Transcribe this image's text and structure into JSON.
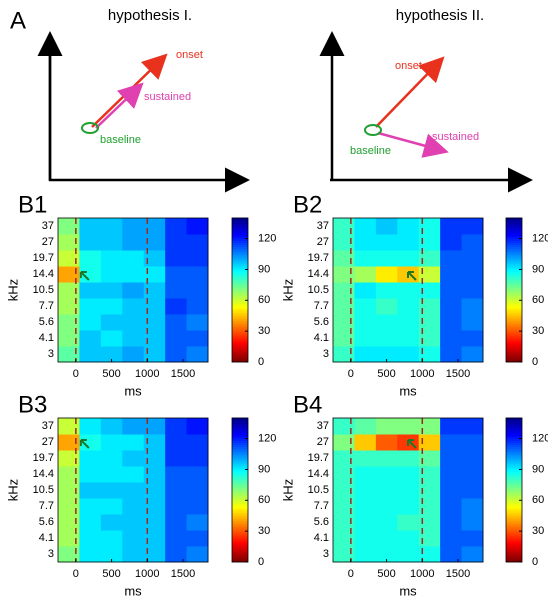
{
  "panel_a": {
    "label": "A",
    "left": {
      "title": "hypothesis I.",
      "onset": "onset",
      "sustained": "sustained",
      "baseline": "baseline"
    },
    "right": {
      "title": "hypothesis II.",
      "onset": "onset",
      "sustained": "sustained",
      "baseline": "baseline"
    }
  },
  "chart_data": [
    {
      "type": "heatmap",
      "label": "B1",
      "xlabel": "ms",
      "ylabel": "kHz",
      "categories": [
        "3",
        "4.1",
        "5.6",
        "7.7",
        "10.5",
        "14.4",
        "19.7",
        "27",
        "37"
      ],
      "x": [
        -100,
        200,
        500,
        800,
        1100,
        1400,
        1700
      ],
      "xlim": [
        -250,
        1850
      ],
      "xticks": [
        0,
        500,
        1000,
        1500
      ],
      "values": [
        [
          75,
          95,
          95,
          100,
          95,
          110,
          105
        ],
        [
          70,
          95,
          90,
          95,
          95,
          110,
          110
        ],
        [
          70,
          90,
          95,
          95,
          95,
          110,
          105
        ],
        [
          65,
          90,
          90,
          95,
          95,
          115,
          110
        ],
        [
          65,
          95,
          95,
          100,
          95,
          110,
          110
        ],
        [
          40,
          85,
          90,
          90,
          90,
          110,
          110
        ],
        [
          60,
          85,
          90,
          90,
          95,
          115,
          115
        ],
        [
          65,
          95,
          95,
          100,
          100,
          115,
          115
        ],
        [
          70,
          95,
          95,
          100,
          100,
          115,
          120
        ]
      ],
      "clim": [
        0,
        140
      ],
      "cticks": [
        0,
        30,
        60,
        90,
        120
      ],
      "vlines": [
        0,
        1000
      ],
      "peak": {
        "x": 70,
        "row": "14.4"
      }
    },
    {
      "type": "heatmap",
      "label": "B2",
      "xlabel": "ms",
      "ylabel": "kHz",
      "categories": [
        "3",
        "4.1",
        "5.6",
        "7.7",
        "10.5",
        "14.4",
        "19.7",
        "27",
        "37"
      ],
      "x": [
        -100,
        200,
        500,
        800,
        1100,
        1400,
        1700
      ],
      "xlim": [
        -250,
        1850
      ],
      "xticks": [
        0,
        500,
        1000,
        1500
      ],
      "values": [
        [
          80,
          90,
          90,
          90,
          85,
          110,
          105
        ],
        [
          75,
          85,
          85,
          85,
          80,
          110,
          110
        ],
        [
          75,
          85,
          85,
          85,
          80,
          110,
          105
        ],
        [
          75,
          85,
          80,
          85,
          80,
          110,
          105
        ],
        [
          75,
          90,
          85,
          85,
          85,
          110,
          110
        ],
        [
          70,
          65,
          50,
          45,
          60,
          110,
          110
        ],
        [
          75,
          85,
          85,
          85,
          80,
          110,
          110
        ],
        [
          80,
          90,
          90,
          90,
          85,
          115,
          110
        ],
        [
          80,
          90,
          95,
          90,
          85,
          115,
          115
        ]
      ],
      "clim": [
        0,
        140
      ],
      "cticks": [
        0,
        30,
        60,
        90,
        120
      ],
      "vlines": [
        0,
        1000
      ],
      "peak": {
        "x": 800,
        "row": "14.4"
      }
    },
    {
      "type": "heatmap",
      "label": "B3",
      "xlabel": "ms",
      "ylabel": "kHz",
      "categories": [
        "3",
        "4.1",
        "5.6",
        "7.7",
        "10.5",
        "14.4",
        "19.7",
        "27",
        "37"
      ],
      "x": [
        -100,
        200,
        500,
        800,
        1100,
        1400,
        1700
      ],
      "xlim": [
        -250,
        1850
      ],
      "xticks": [
        0,
        500,
        1000,
        1500
      ],
      "values": [
        [
          70,
          90,
          90,
          95,
          95,
          110,
          105
        ],
        [
          65,
          90,
          90,
          95,
          95,
          110,
          110
        ],
        [
          65,
          90,
          95,
          95,
          95,
          110,
          105
        ],
        [
          65,
          90,
          90,
          95,
          95,
          110,
          110
        ],
        [
          65,
          95,
          95,
          95,
          95,
          110,
          110
        ],
        [
          65,
          90,
          90,
          90,
          95,
          110,
          110
        ],
        [
          60,
          90,
          90,
          95,
          95,
          115,
          115
        ],
        [
          40,
          85,
          90,
          90,
          95,
          115,
          115
        ],
        [
          60,
          90,
          95,
          100,
          100,
          115,
          120
        ]
      ],
      "clim": [
        0,
        140
      ],
      "cticks": [
        0,
        30,
        60,
        90,
        120
      ],
      "vlines": [
        0,
        1000
      ],
      "peak": {
        "x": 70,
        "row": "27"
      }
    },
    {
      "type": "heatmap",
      "label": "B4",
      "xlabel": "ms",
      "ylabel": "kHz",
      "categories": [
        "3",
        "4.1",
        "5.6",
        "7.7",
        "10.5",
        "14.4",
        "19.7",
        "27",
        "37"
      ],
      "x": [
        -100,
        200,
        500,
        800,
        1100,
        1400,
        1700
      ],
      "xlim": [
        -250,
        1850
      ],
      "xticks": [
        0,
        500,
        1000,
        1500
      ],
      "values": [
        [
          80,
          85,
          85,
          85,
          85,
          110,
          105
        ],
        [
          80,
          85,
          85,
          85,
          80,
          110,
          110
        ],
        [
          80,
          85,
          85,
          80,
          80,
          110,
          105
        ],
        [
          80,
          85,
          85,
          85,
          80,
          110,
          105
        ],
        [
          80,
          85,
          85,
          85,
          80,
          110,
          110
        ],
        [
          80,
          85,
          85,
          85,
          80,
          110,
          110
        ],
        [
          80,
          80,
          80,
          80,
          75,
          110,
          110
        ],
        [
          70,
          45,
          30,
          25,
          45,
          110,
          110
        ],
        [
          80,
          75,
          70,
          70,
          70,
          115,
          115
        ]
      ],
      "clim": [
        0,
        140
      ],
      "cticks": [
        0,
        30,
        60,
        90,
        120
      ],
      "vlines": [
        0,
        1000
      ],
      "peak": {
        "x": 800,
        "row": "27"
      }
    }
  ]
}
